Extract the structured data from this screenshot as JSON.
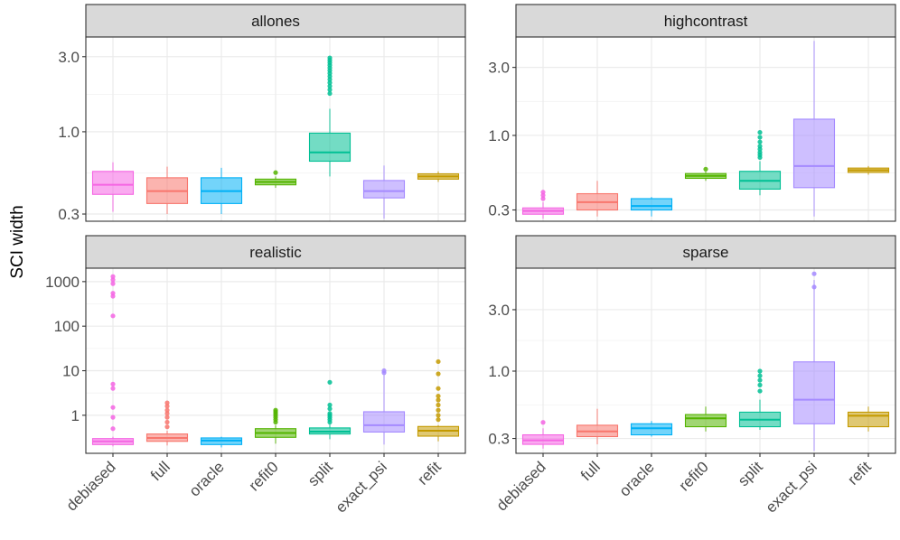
{
  "chart_data": {
    "type": "boxplot",
    "ylabel": "SCI width",
    "xlabel": "",
    "y_scale": "log10",
    "grid": true,
    "legend": "none",
    "categories": [
      "debiased",
      "full",
      "oracle",
      "refit0",
      "split",
      "exact_psi",
      "refit"
    ],
    "colors": {
      "debiased": "#f564e3",
      "full": "#f8766d",
      "oracle": "#00b0f6",
      "refit0": "#53b400",
      "split": "#00c094",
      "exact_psi": "#a58aff",
      "refit": "#c49a00"
    },
    "panels": [
      {
        "name": "allones",
        "ylim": [
          0.27,
          4.0
        ],
        "yticks": [
          0.3,
          1.0,
          3.0
        ],
        "ytick_labels": [
          "0.3",
          "1.0",
          "3.0"
        ],
        "boxes": [
          {
            "cat": "debiased",
            "min": 0.31,
            "q1": 0.4,
            "median": 0.46,
            "q3": 0.56,
            "max": 0.64,
            "outliers": []
          },
          {
            "cat": "full",
            "min": 0.3,
            "q1": 0.35,
            "median": 0.42,
            "q3": 0.51,
            "max": 0.6,
            "outliers": []
          },
          {
            "cat": "oracle",
            "min": 0.3,
            "q1": 0.35,
            "median": 0.42,
            "q3": 0.51,
            "max": 0.59,
            "outliers": []
          },
          {
            "cat": "refit0",
            "min": 0.44,
            "q1": 0.46,
            "median": 0.48,
            "q3": 0.5,
            "max": 0.52,
            "outliers": [
              0.55
            ]
          },
          {
            "cat": "split",
            "min": 0.52,
            "q1": 0.65,
            "median": 0.74,
            "q3": 0.98,
            "max": 1.4,
            "outliers": [
              1.75,
              1.85,
              1.95,
              2.05,
              2.15,
              2.25,
              2.35,
              2.45,
              2.55,
              2.65,
              2.75,
              2.85,
              2.95
            ]
          },
          {
            "cat": "exact_psi",
            "min": 0.28,
            "q1": 0.38,
            "median": 0.42,
            "q3": 0.49,
            "max": 0.61,
            "outliers": []
          },
          {
            "cat": "refit",
            "min": 0.48,
            "q1": 0.5,
            "median": 0.52,
            "q3": 0.54,
            "max": 0.56,
            "outliers": []
          }
        ]
      },
      {
        "name": "highcontrast",
        "ylim": [
          0.25,
          4.9
        ],
        "yticks": [
          0.3,
          1.0,
          3.0
        ],
        "ytick_labels": [
          "0.3",
          "1.0",
          "3.0"
        ],
        "boxes": [
          {
            "cat": "debiased",
            "min": 0.26,
            "q1": 0.28,
            "median": 0.295,
            "q3": 0.31,
            "max": 0.34,
            "outliers": [
              0.36,
              0.38,
              0.4
            ]
          },
          {
            "cat": "full",
            "min": 0.27,
            "q1": 0.3,
            "median": 0.34,
            "q3": 0.39,
            "max": 0.48,
            "outliers": []
          },
          {
            "cat": "oracle",
            "min": 0.27,
            "q1": 0.3,
            "median": 0.32,
            "q3": 0.36,
            "max": 0.37,
            "outliers": []
          },
          {
            "cat": "refit0",
            "min": 0.48,
            "q1": 0.5,
            "median": 0.52,
            "q3": 0.54,
            "max": 0.56,
            "outliers": [
              0.58
            ]
          },
          {
            "cat": "split",
            "min": 0.38,
            "q1": 0.42,
            "median": 0.48,
            "q3": 0.56,
            "max": 0.66,
            "outliers": [
              0.7,
              0.73,
              0.76,
              0.8,
              0.84,
              0.9,
              0.97,
              1.05
            ]
          },
          {
            "cat": "exact_psi",
            "min": 0.27,
            "q1": 0.43,
            "median": 0.61,
            "q3": 1.3,
            "max": 4.6,
            "outliers": []
          },
          {
            "cat": "refit",
            "min": 0.53,
            "q1": 0.55,
            "median": 0.57,
            "q3": 0.59,
            "max": 0.61,
            "outliers": []
          }
        ]
      },
      {
        "name": "realistic",
        "ylim": [
          0.14,
          2000
        ],
        "yticks": [
          1,
          10,
          100,
          1000
        ],
        "ytick_labels": [
          "1",
          "10",
          "100",
          "1000"
        ],
        "boxes": [
          {
            "cat": "debiased",
            "min": 0.2,
            "q1": 0.22,
            "median": 0.26,
            "q3": 0.3,
            "max": 0.33,
            "outliers": [
              0.5,
              0.9,
              1.5,
              4.0,
              5.0,
              170,
              470,
              550,
              900,
              1100,
              1300
            ]
          },
          {
            "cat": "full",
            "min": 0.21,
            "q1": 0.26,
            "median": 0.31,
            "q3": 0.38,
            "max": 0.45,
            "outliers": [
              0.55,
              0.7,
              0.9,
              1.1,
              1.3,
              1.6,
              1.9
            ]
          },
          {
            "cat": "oracle",
            "min": 0.19,
            "q1": 0.22,
            "median": 0.27,
            "q3": 0.31,
            "max": 0.33,
            "outliers": []
          },
          {
            "cat": "refit0",
            "min": 0.23,
            "q1": 0.32,
            "median": 0.4,
            "q3": 0.5,
            "max": 0.6,
            "outliers": [
              0.7,
              0.8,
              0.9,
              1.0,
              1.1,
              1.2,
              1.3
            ]
          },
          {
            "cat": "split",
            "min": 0.29,
            "q1": 0.38,
            "median": 0.43,
            "q3": 0.52,
            "max": 0.62,
            "outliers": [
              0.7,
              0.8,
              0.9,
              1.0,
              1.1,
              1.4,
              1.7,
              5.5
            ]
          },
          {
            "cat": "exact_psi",
            "min": 0.22,
            "q1": 0.42,
            "median": 0.6,
            "q3": 1.2,
            "max": 8.0,
            "outliers": [
              9.0,
              10.0
            ]
          },
          {
            "cat": "refit",
            "min": 0.26,
            "q1": 0.34,
            "median": 0.45,
            "q3": 0.56,
            "max": 0.6,
            "outliers": [
              0.8,
              1.0,
              1.3,
              1.7,
              2.2,
              2.7,
              4.0,
              8.5,
              16.0
            ]
          }
        ]
      },
      {
        "name": "sparse",
        "ylim": [
          0.23,
          6.3
        ],
        "yticks": [
          0.3,
          1.0,
          3.0
        ],
        "ytick_labels": [
          "0.3",
          "1.0",
          "3.0"
        ],
        "boxes": [
          {
            "cat": "debiased",
            "min": 0.25,
            "q1": 0.27,
            "median": 0.29,
            "q3": 0.32,
            "max": 0.36,
            "outliers": [
              0.4
            ]
          },
          {
            "cat": "full",
            "min": 0.27,
            "q1": 0.31,
            "median": 0.34,
            "q3": 0.38,
            "max": 0.51,
            "outliers": []
          },
          {
            "cat": "oracle",
            "min": 0.31,
            "q1": 0.32,
            "median": 0.36,
            "q3": 0.39,
            "max": 0.41,
            "outliers": []
          },
          {
            "cat": "refit0",
            "min": 0.34,
            "q1": 0.37,
            "median": 0.43,
            "q3": 0.46,
            "max": 0.53,
            "outliers": []
          },
          {
            "cat": "split",
            "min": 0.35,
            "q1": 0.37,
            "median": 0.42,
            "q3": 0.48,
            "max": 0.6,
            "outliers": [
              0.7,
              0.78,
              0.85,
              0.92,
              1.0
            ]
          },
          {
            "cat": "exact_psi",
            "min": 0.24,
            "q1": 0.39,
            "median": 0.6,
            "q3": 1.18,
            "max": 5.1,
            "outliers": [
              4.5,
              5.7
            ]
          },
          {
            "cat": "refit",
            "min": 0.34,
            "q1": 0.37,
            "median": 0.45,
            "q3": 0.48,
            "max": 0.53,
            "outliers": []
          }
        ]
      }
    ]
  }
}
